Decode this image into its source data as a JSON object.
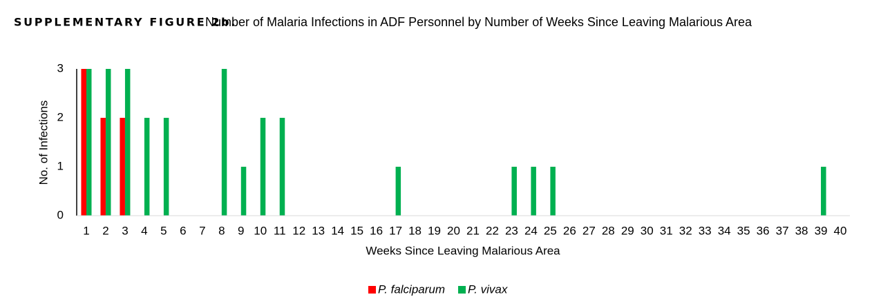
{
  "chart_data": {
    "type": "bar",
    "figure_label": "SUPPLEMENTARY FIGURE 2b.",
    "title": "Number of Malaria Infections in ADF Personnel by Number of Weeks Since Leaving Malarious Area",
    "x_label": "Weeks Since Leaving Malarious Area",
    "y_label": "No. of  Infections",
    "categories": [
      "1",
      "2",
      "3",
      "4",
      "5",
      "6",
      "7",
      "8",
      "9",
      "10",
      "11",
      "12",
      "13",
      "14",
      "15",
      "16",
      "17",
      "18",
      "19",
      "20",
      "21",
      "22",
      "23",
      "24",
      "25",
      "26",
      "27",
      "28",
      "29",
      "30",
      "31",
      "32",
      "33",
      "34",
      "35",
      "36",
      "37",
      "38",
      "39",
      "40"
    ],
    "series": [
      {
        "name": "P. falciparum",
        "color": "#ff0000",
        "values": [
          3,
          2,
          2,
          0,
          0,
          0,
          0,
          0,
          0,
          0,
          0,
          0,
          0,
          0,
          0,
          0,
          0,
          0,
          0,
          0,
          0,
          0,
          0,
          0,
          0,
          0,
          0,
          0,
          0,
          0,
          0,
          0,
          0,
          0,
          0,
          0,
          0,
          0,
          0,
          0
        ]
      },
      {
        "name": "P. vivax",
        "color": "#00b050",
        "values": [
          3,
          3,
          3,
          2,
          2,
          0,
          0,
          3,
          1,
          2,
          2,
          0,
          0,
          0,
          0,
          0,
          1,
          0,
          0,
          0,
          0,
          0,
          1,
          1,
          1,
          0,
          0,
          0,
          0,
          0,
          0,
          0,
          0,
          0,
          0,
          0,
          0,
          0,
          1,
          0
        ]
      }
    ],
    "ylim": [
      0,
      3
    ],
    "yticks": [
      0,
      1,
      2,
      3
    ],
    "grid": false,
    "legend": "bottom"
  }
}
